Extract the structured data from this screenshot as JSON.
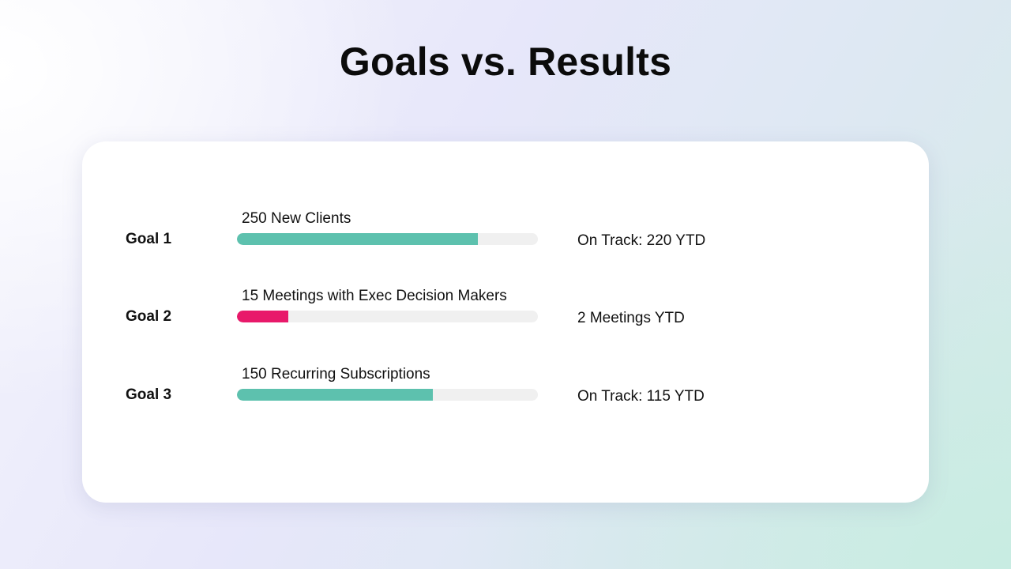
{
  "title": "Goals vs. Results",
  "goals": [
    {
      "label": "Goal 1",
      "target": "250 New Clients",
      "result": "On Track: 220 YTD",
      "progress": 0.8,
      "color": "#5dc1ae"
    },
    {
      "label": "Goal 2",
      "target": "15 Meetings with Exec Decision Makers",
      "result": "2 Meetings YTD",
      "progress": 0.17,
      "color": "#e8196a"
    },
    {
      "label": "Goal 3",
      "target": "150 Recurring Subscriptions",
      "result": "On Track: 115 YTD",
      "progress": 0.65,
      "color": "#5dc1ae"
    }
  ],
  "colors": {
    "track": "#f0f0f0",
    "on_track": "#5dc1ae",
    "behind": "#e8196a"
  }
}
